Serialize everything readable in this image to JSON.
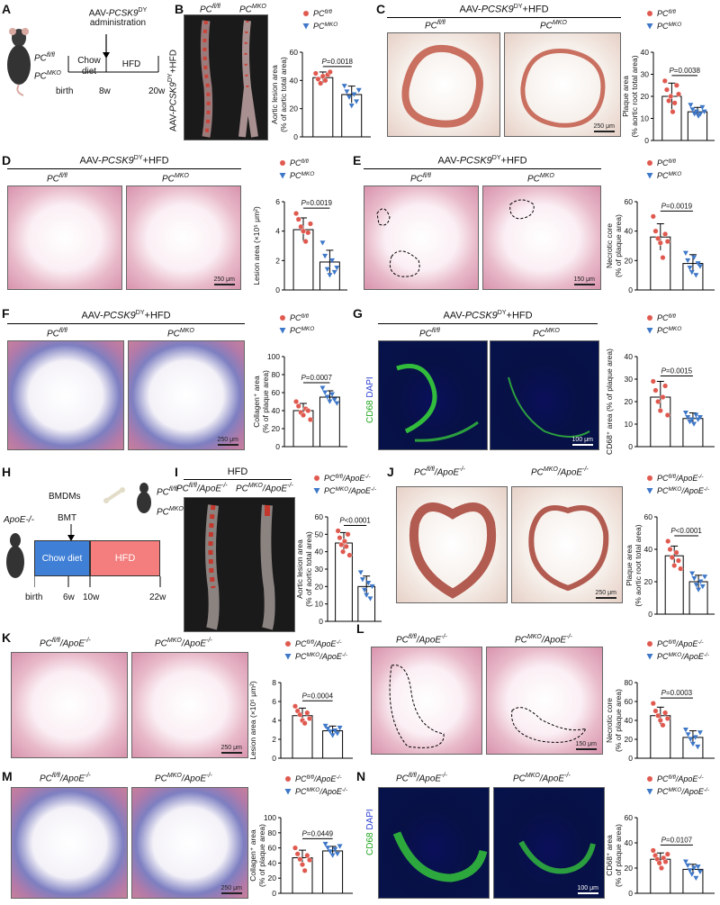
{
  "panels": {
    "A": {
      "label": "A",
      "title": "AAV-PCSK9DY administration",
      "groups": [
        "PCfl/fl",
        "PCMKO"
      ],
      "timeline": [
        "birth",
        "8w",
        "20w"
      ],
      "phases": [
        "Chow diet",
        "HFD"
      ]
    },
    "B": {
      "label": "B",
      "side": "AAV-PCSK9DY+HFD",
      "groups": [
        "PCfl/fl",
        "PCMKO"
      ]
    },
    "C": {
      "label": "C",
      "title": "AAV-PCSK9DY+HFD",
      "groups": [
        "PCfl/fl",
        "PCMKO"
      ],
      "scale": "250 μm"
    },
    "D": {
      "label": "D",
      "title": "AAV-PCSK9DY+HFD",
      "groups": [
        "PCfl/fl",
        "PCMKO"
      ],
      "scale": "250 μm"
    },
    "E": {
      "label": "E",
      "title": "AAV-PCSK9DY+HFD",
      "groups": [
        "PCfl/fl",
        "PCMKO"
      ],
      "scale": "150 μm"
    },
    "F": {
      "label": "F",
      "title": "AAV-PCSK9DY+HFD",
      "groups": [
        "PCfl/fl",
        "PCMKO"
      ],
      "scale": "250 μm"
    },
    "G": {
      "label": "G",
      "title": "AAV-PCSK9DY+HFD",
      "groups": [
        "PCfl/fl",
        "PCMKO"
      ],
      "scale": "100 μm",
      "stain_cd68": "CD68",
      "stain_dapi": "DAPI"
    },
    "H": {
      "label": "H",
      "host": "ApoE-/-",
      "donors": [
        "PCfl/fl",
        "PCMKO"
      ],
      "bmdm": "BMDMs",
      "bmt": "BMT",
      "phases": [
        "Chow diet",
        "HFD"
      ],
      "timeline": [
        "birth",
        "6w",
        "10w",
        "22w"
      ]
    },
    "I": {
      "label": "I",
      "title": "HFD",
      "groups": [
        "PCfl/fl/ApoE-/-",
        "PCMKO/ApoE-/-"
      ]
    },
    "J": {
      "label": "J",
      "groups": [
        "PCfl/fl/ApoE-/-",
        "PCMKO/ApoE-/-"
      ],
      "scale": "250 μm"
    },
    "K": {
      "label": "K",
      "groups": [
        "PCfl/fl/ApoE-/-",
        "PCMKO/ApoE-/-"
      ],
      "scale": "250 μm"
    },
    "L": {
      "label": "L",
      "groups": [
        "PCfl/fl/ApoE-/-",
        "PCMKO/ApoE-/-"
      ],
      "scale": "150 μm"
    },
    "M": {
      "label": "M",
      "groups": [
        "PCfl/fl/ApoE-/-",
        "PCMKO/ApoE-/-"
      ],
      "scale": "250 μm"
    },
    "N": {
      "label": "N",
      "groups": [
        "PCfl/fl/ApoE-/-",
        "PCMKO/ApoE-/-"
      ],
      "scale": "100 μm",
      "stain_cd68": "CD68",
      "stain_dapi": "DAPI"
    }
  },
  "colors": {
    "red": "#e0594f",
    "blue": "#3f78c8"
  },
  "chart_data": [
    {
      "id": "B",
      "type": "bar",
      "legend": [
        "PCfl/fl",
        "PCMKO"
      ],
      "ylabel": [
        "Aortic lesion area",
        "(% of aortic total area)"
      ],
      "ylim": [
        0,
        60
      ],
      "ticks": [
        0,
        20,
        40,
        60
      ],
      "pval": "P=0.0018",
      "series": [
        {
          "name": "PCfl/fl",
          "mean": 42,
          "err": 4,
          "points": [
            45,
            41,
            38,
            43,
            40,
            44,
            46
          ]
        },
        {
          "name": "PCMKO",
          "mean": 30,
          "err": 6,
          "points": [
            36,
            32,
            28,
            22,
            30,
            25,
            33
          ]
        }
      ]
    },
    {
      "id": "C",
      "type": "bar",
      "legend": [
        "PCfl/fl",
        "PCMKO"
      ],
      "ylabel": [
        "Plaque area",
        "(% aortic root total area)"
      ],
      "ylim": [
        0,
        40
      ],
      "ticks": [
        0,
        10,
        20,
        30,
        40
      ],
      "pval": "P=0.0038",
      "series": [
        {
          "name": "PCfl/fl",
          "mean": 20,
          "err": 6,
          "points": [
            27,
            23,
            18,
            20,
            13,
            17,
            25,
            21
          ]
        },
        {
          "name": "PCMKO",
          "mean": 13,
          "err": 2,
          "points": [
            16,
            14,
            12,
            13,
            11,
            12,
            15,
            13
          ]
        }
      ]
    },
    {
      "id": "D",
      "type": "bar",
      "legend": [
        "PCfl/fl",
        "PCMKO"
      ],
      "ylabel": [
        "Lesion area (×10⁵ μm²)"
      ],
      "ylim": [
        0,
        6
      ],
      "ticks": [
        0,
        2,
        4,
        6
      ],
      "pval": "P=0.0019",
      "series": [
        {
          "name": "PCfl/fl",
          "mean": 4.1,
          "err": 0.8,
          "points": [
            5.2,
            4.8,
            4.3,
            4.0,
            3.3,
            3.9,
            4.5
          ]
        },
        {
          "name": "PCMKO",
          "mean": 1.9,
          "err": 0.8,
          "points": [
            3.2,
            2.3,
            1.4,
            1.0,
            2.0,
            1.2,
            1.5
          ]
        }
      ]
    },
    {
      "id": "E",
      "type": "bar",
      "legend": [
        "PCfl/fl",
        "PCMKO"
      ],
      "ylabel": [
        "Necrotic core",
        "(% of plaque area)"
      ],
      "ylim": [
        0,
        60
      ],
      "ticks": [
        0,
        20,
        40,
        60
      ],
      "pval": "P=0.0019",
      "series": [
        {
          "name": "PCfl/fl",
          "mean": 36,
          "err": 9,
          "points": [
            50,
            40,
            35,
            32,
            22,
            38,
            33
          ]
        },
        {
          "name": "PCMKO",
          "mean": 18,
          "err": 6,
          "points": [
            25,
            20,
            15,
            12,
            22,
            10,
            18,
            16
          ]
        }
      ]
    },
    {
      "id": "F",
      "type": "bar",
      "legend": [
        "PCfl/fl",
        "PCMKO"
      ],
      "ylabel": [
        "Collagen⁺ area",
        "(% of plaque area)"
      ],
      "ylim": [
        0,
        100
      ],
      "ticks": [
        0,
        20,
        40,
        60,
        80,
        100
      ],
      "pval": "P=0.0007",
      "series": [
        {
          "name": "PCfl/fl",
          "mean": 40,
          "err": 8,
          "points": [
            50,
            45,
            38,
            35,
            42,
            40,
            30
          ]
        },
        {
          "name": "PCMKO",
          "mean": 55,
          "err": 7,
          "points": [
            65,
            60,
            55,
            50,
            58,
            52,
            48
          ]
        }
      ]
    },
    {
      "id": "G",
      "type": "bar",
      "legend": [
        "PCfl/fl",
        "PCMKO"
      ],
      "ylabel": [
        "CD68⁺ area (% of plaque area)"
      ],
      "ylim": [
        0,
        40
      ],
      "ticks": [
        0,
        10,
        20,
        30,
        40
      ],
      "pval": "P=0.0015",
      "series": [
        {
          "name": "PCfl/fl",
          "mean": 22,
          "err": 7,
          "points": [
            29,
            25,
            20,
            16,
            22,
            27,
            14
          ]
        },
        {
          "name": "PCMKO",
          "mean": 12.5,
          "err": 2.5,
          "points": [
            15,
            13,
            11,
            12,
            10,
            14,
            12,
            13
          ]
        }
      ]
    },
    {
      "id": "I",
      "type": "bar",
      "legend": [
        "PCfl/fl/ApoE-/-",
        "PCMKO/ApoE-/-"
      ],
      "ylabel": [
        "Aortic lesion area",
        "(% of aortic total area)"
      ],
      "ylim": [
        0,
        60
      ],
      "ticks": [
        0,
        10,
        20,
        30,
        40,
        50,
        60
      ],
      "pval": "P<0.0001",
      "series": [
        {
          "name": "PCfl/fl/ApoE-/-",
          "mean": 45,
          "err": 6,
          "points": [
            52,
            48,
            44,
            40,
            46,
            43,
            50,
            38
          ]
        },
        {
          "name": "PCMKO/ApoE-/-",
          "mean": 20,
          "err": 6,
          "points": [
            28,
            24,
            18,
            15,
            22,
            13,
            20
          ]
        }
      ]
    },
    {
      "id": "J",
      "type": "bar",
      "legend": [
        "PCfl/fl/ApoE-/-",
        "PCMKO/ApoE-/-"
      ],
      "ylabel": [
        "Plaque area",
        "(% aortic root total area)"
      ],
      "ylim": [
        0,
        60
      ],
      "ticks": [
        0,
        20,
        40,
        60
      ],
      "pval": "P<0.0001",
      "series": [
        {
          "name": "PCfl/fl/ApoE-/-",
          "mean": 36,
          "err": 6,
          "points": [
            45,
            40,
            35,
            30,
            38,
            33,
            28
          ]
        },
        {
          "name": "PCMKO/ApoE-/-",
          "mean": 20,
          "err": 4,
          "points": [
            25,
            22,
            18,
            15,
            20,
            17,
            23
          ]
        }
      ]
    },
    {
      "id": "K",
      "type": "bar",
      "legend": [
        "PCfl/fl/ApoE-/-",
        "PCMKO/ApoE-/-"
      ],
      "ylabel": [
        "Lesion area (×10⁵ μm²)"
      ],
      "ylim": [
        0,
        8
      ],
      "ticks": [
        0,
        2,
        4,
        6,
        8
      ],
      "pval": "P=0.0004",
      "series": [
        {
          "name": "PCfl/fl/ApoE-/-",
          "mean": 4.5,
          "err": 0.8,
          "points": [
            5.5,
            5.0,
            4.6,
            4.0,
            3.7,
            4.8,
            4.2
          ]
        },
        {
          "name": "PCMKO/ApoE-/-",
          "mean": 2.9,
          "err": 0.5,
          "points": [
            3.4,
            3.1,
            2.8,
            2.4,
            2.9,
            2.6,
            3.2
          ]
        }
      ]
    },
    {
      "id": "L",
      "type": "bar",
      "legend": [
        "PCfl/fl/ApoE-/-",
        "PCMKO/ApoE-/-"
      ],
      "ylabel": [
        "Necrotic core",
        "(% of plaque area)"
      ],
      "ylim": [
        0,
        80
      ],
      "ticks": [
        0,
        20,
        40,
        60,
        80
      ],
      "pval": "P=0.0003",
      "series": [
        {
          "name": "PCfl/fl/ApoE-/-",
          "mean": 45,
          "err": 9,
          "points": [
            58,
            50,
            45,
            40,
            35,
            48,
            42
          ]
        },
        {
          "name": "PCMKO/ApoE-/-",
          "mean": 22,
          "err": 7,
          "points": [
            30,
            25,
            20,
            15,
            22,
            12,
            27
          ]
        }
      ]
    },
    {
      "id": "M",
      "type": "bar",
      "legend": [
        "PCfl/fl/ApoE-/-",
        "PCMKO/ApoE-/-"
      ],
      "ylabel": [
        "Collagen⁺ area",
        "(% of plaque area)"
      ],
      "ylim": [
        0,
        100
      ],
      "ticks": [
        0,
        20,
        40,
        60,
        80,
        100
      ],
      "pval": "P=0.0449",
      "series": [
        {
          "name": "PCfl/fl/ApoE-/-",
          "mean": 47,
          "err": 10,
          "points": [
            60,
            52,
            45,
            38,
            30,
            50,
            44
          ]
        },
        {
          "name": "PCMKO/ApoE-/-",
          "mean": 56,
          "err": 6,
          "points": [
            65,
            60,
            55,
            50,
            58,
            52,
            62
          ]
        }
      ]
    },
    {
      "id": "N",
      "type": "bar",
      "legend": [
        "PCfl/fl/ApoE-/-",
        "PCMKO/ApoE-/-"
      ],
      "ylabel": [
        "CD68⁺ area",
        "(% of plaque area)"
      ],
      "ylim": [
        0,
        60
      ],
      "ticks": [
        0,
        20,
        40,
        60
      ],
      "pval": "P=0.0107",
      "series": [
        {
          "name": "PCfl/fl/ApoE-/-",
          "mean": 27,
          "err": 5,
          "points": [
            34,
            30,
            27,
            24,
            20,
            28,
            25,
            31
          ]
        },
        {
          "name": "PCMKO/ApoE-/-",
          "mean": 19,
          "err": 4,
          "points": [
            25,
            22,
            18,
            15,
            20,
            12,
            21,
            17
          ]
        }
      ]
    }
  ]
}
